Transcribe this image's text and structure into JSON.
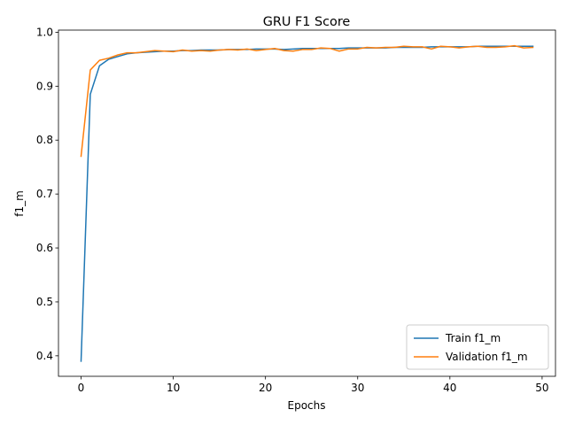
{
  "chart_data": {
    "type": "line",
    "title": "GRU F1 Score",
    "xlabel": "Epochs",
    "ylabel": "f1_m",
    "xlim": [
      -2.45,
      51.45
    ],
    "ylim": [
      0.362,
      1.004
    ],
    "xticks": [
      0,
      10,
      20,
      30,
      40,
      50
    ],
    "yticks": [
      0.4,
      0.5,
      0.6,
      0.7,
      0.8,
      0.9,
      1.0
    ],
    "ytick_labels": [
      "0.4",
      "0.5",
      "0.6",
      "0.7",
      "0.8",
      "0.9",
      "1.0"
    ],
    "grid": false,
    "legend_position": "lower-right",
    "series": [
      {
        "name": "Train f1_m",
        "color": "#1f77b4",
        "x": [
          0,
          1,
          2,
          3,
          4,
          5,
          6,
          7,
          8,
          9,
          10,
          11,
          12,
          13,
          14,
          15,
          16,
          17,
          18,
          19,
          20,
          21,
          22,
          23,
          24,
          25,
          26,
          27,
          28,
          29,
          30,
          31,
          32,
          33,
          34,
          35,
          36,
          37,
          38,
          39,
          40,
          41,
          42,
          43,
          44,
          45,
          46,
          47,
          48,
          49
        ],
        "values": [
          0.39,
          0.885,
          0.938,
          0.95,
          0.955,
          0.96,
          0.962,
          0.963,
          0.964,
          0.965,
          0.965,
          0.966,
          0.966,
          0.967,
          0.967,
          0.967,
          0.968,
          0.968,
          0.968,
          0.969,
          0.969,
          0.969,
          0.968,
          0.969,
          0.97,
          0.97,
          0.97,
          0.97,
          0.97,
          0.971,
          0.971,
          0.971,
          0.971,
          0.971,
          0.972,
          0.972,
          0.972,
          0.972,
          0.973,
          0.973,
          0.973,
          0.973,
          0.973,
          0.974,
          0.974,
          0.974,
          0.974,
          0.974,
          0.974,
          0.974
        ]
      },
      {
        "name": "Validation f1_m",
        "color": "#ff7f0e",
        "x": [
          0,
          1,
          2,
          3,
          4,
          5,
          6,
          7,
          8,
          9,
          10,
          11,
          12,
          13,
          14,
          15,
          16,
          17,
          18,
          19,
          20,
          21,
          22,
          23,
          24,
          25,
          26,
          27,
          28,
          29,
          30,
          31,
          32,
          33,
          34,
          35,
          36,
          37,
          38,
          39,
          40,
          41,
          42,
          43,
          44,
          45,
          46,
          47,
          48,
          49
        ],
        "values": [
          0.77,
          0.93,
          0.948,
          0.952,
          0.958,
          0.962,
          0.962,
          0.964,
          0.966,
          0.965,
          0.964,
          0.967,
          0.965,
          0.966,
          0.965,
          0.967,
          0.968,
          0.967,
          0.969,
          0.966,
          0.968,
          0.97,
          0.966,
          0.965,
          0.968,
          0.968,
          0.971,
          0.97,
          0.965,
          0.969,
          0.969,
          0.972,
          0.971,
          0.972,
          0.972,
          0.974,
          0.973,
          0.973,
          0.969,
          0.974,
          0.973,
          0.971,
          0.973,
          0.974,
          0.972,
          0.972,
          0.973,
          0.975,
          0.971,
          0.972
        ]
      }
    ]
  }
}
